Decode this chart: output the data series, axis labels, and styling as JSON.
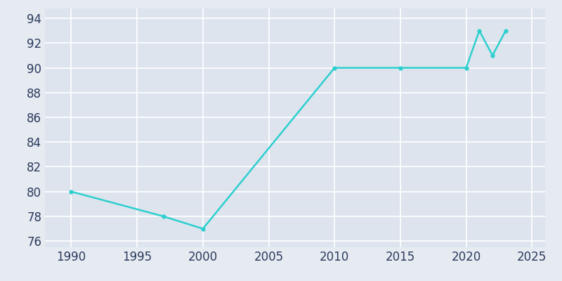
{
  "years": [
    1990,
    1997,
    2000,
    2010,
    2015,
    2020,
    2021,
    2022,
    2023
  ],
  "population": [
    80,
    78,
    77,
    90,
    90,
    90,
    93,
    91,
    93
  ],
  "line_color": "#2ECFCF",
  "background_color": "#E6EBF2",
  "plot_bg_color": "#DDE4EE",
  "grid_color": "#FFFFFF",
  "text_color": "#2B3A5C",
  "xlim": [
    1988,
    2026
  ],
  "ylim": [
    75.5,
    94.8
  ],
  "xticks": [
    1990,
    1995,
    2000,
    2005,
    2010,
    2015,
    2020,
    2025
  ],
  "yticks": [
    76,
    78,
    80,
    82,
    84,
    86,
    88,
    90,
    92,
    94
  ],
  "linewidth": 1.8,
  "marker": "o",
  "markersize": 3.5,
  "tick_fontsize": 12
}
